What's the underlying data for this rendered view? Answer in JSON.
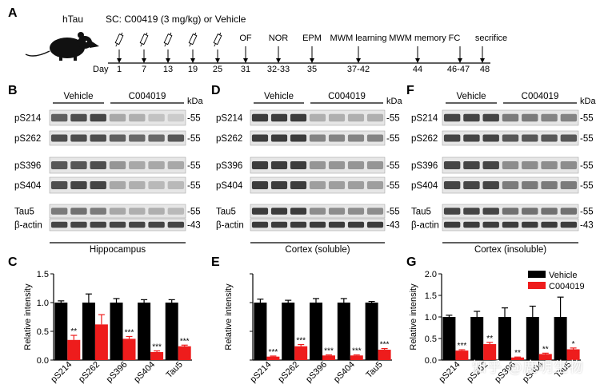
{
  "colors": {
    "vehicle": "#000000",
    "compound": "#ee1c1c",
    "blot_bg": "#e6e6e6",
    "band": "#333333"
  },
  "panel_a": {
    "letter": "A",
    "model": "hTau",
    "treatment": "SC: C00419 (3 mg/kg) or Vehicle",
    "day_label": "Day",
    "injection_days": [
      "1",
      "7",
      "13",
      "19",
      "25"
    ],
    "tests": [
      {
        "name": "OF",
        "day": "31"
      },
      {
        "name": "NOR",
        "day": "32-33"
      },
      {
        "name": "EPM",
        "day": "35"
      },
      {
        "name": "MWM learning",
        "day": "37-42"
      },
      {
        "name": "MWM memory",
        "day": "44"
      },
      {
        "name": "FC",
        "day": "46-47"
      },
      {
        "name": "secrifice",
        "day": "48"
      }
    ]
  },
  "blots": [
    {
      "letter": "B",
      "group1": "Vehicle",
      "group2": "C004019",
      "kda": "kDa",
      "rows": [
        {
          "label": "pS214",
          "mw": "-55",
          "veh": [
            0.75,
            0.85,
            0.9
          ],
          "drug": [
            0.35,
            0.3,
            0.2,
            0.15
          ]
        },
        {
          "label": "pS262",
          "mw": "-55",
          "veh": [
            0.85,
            0.85,
            0.85
          ],
          "drug": [
            0.75,
            0.7,
            0.7,
            0.8
          ]
        },
        {
          "label": "pS396",
          "mw": "-55",
          "veh": [
            0.8,
            0.8,
            0.85
          ],
          "drug": [
            0.45,
            0.35,
            0.35,
            0.35
          ]
        },
        {
          "label": "pS404",
          "mw": "-55",
          "veh": [
            0.85,
            0.9,
            0.9
          ],
          "drug": [
            0.35,
            0.3,
            0.25,
            0.25
          ]
        },
        {
          "label": "Tau5",
          "mw": "-55",
          "veh": [
            0.6,
            0.65,
            0.6
          ],
          "drug": [
            0.35,
            0.3,
            0.3,
            0.25
          ]
        },
        {
          "label": "β-actin",
          "mw": "-43",
          "veh": [
            0.9,
            0.9,
            0.9
          ],
          "drug": [
            0.9,
            0.9,
            0.9,
            0.9
          ]
        }
      ],
      "caption": "Hippocampus"
    },
    {
      "letter": "D",
      "group1": "Vehicle",
      "group2": "C004019",
      "kda": "kDa",
      "rows": [
        {
          "label": "pS214",
          "mw": "-55",
          "veh": [
            0.95,
            0.95,
            0.95
          ],
          "drug": [
            0.3,
            0.3,
            0.3,
            0.3
          ]
        },
        {
          "label": "pS262",
          "mw": "-55",
          "veh": [
            0.95,
            0.95,
            0.95
          ],
          "drug": [
            0.55,
            0.55,
            0.55,
            0.55
          ]
        },
        {
          "label": "pS396",
          "mw": "-55",
          "veh": [
            0.95,
            0.95,
            0.95
          ],
          "drug": [
            0.45,
            0.45,
            0.45,
            0.45
          ]
        },
        {
          "label": "pS404",
          "mw": "-55",
          "veh": [
            0.95,
            0.95,
            0.95
          ],
          "drug": [
            0.4,
            0.4,
            0.4,
            0.4
          ]
        },
        {
          "label": "Tau5",
          "mw": "-55",
          "veh": [
            0.95,
            0.95,
            0.95
          ],
          "drug": [
            0.5,
            0.5,
            0.5,
            0.5
          ]
        },
        {
          "label": "β-actin",
          "mw": "-43",
          "veh": [
            0.95,
            0.95,
            0.95
          ],
          "drug": [
            0.95,
            0.95,
            0.95,
            0.95
          ]
        }
      ],
      "caption": "Cortex (soluble)"
    },
    {
      "letter": "F",
      "group1": "Vehicle",
      "group2": "C004019",
      "kda": "kDa",
      "rows": [
        {
          "label": "pS214",
          "mw": "-55",
          "veh": [
            0.9,
            0.9,
            0.9
          ],
          "drug": [
            0.6,
            0.6,
            0.55,
            0.55
          ]
        },
        {
          "label": "pS262",
          "mw": "-55",
          "veh": [
            0.9,
            0.9,
            0.9
          ],
          "drug": [
            0.8,
            0.8,
            0.8,
            0.8
          ]
        },
        {
          "label": "pS396",
          "mw": "-55",
          "veh": [
            0.9,
            0.9,
            0.9
          ],
          "drug": [
            0.5,
            0.5,
            0.5,
            0.5
          ]
        },
        {
          "label": "pS404",
          "mw": "-55",
          "veh": [
            0.9,
            0.9,
            0.9
          ],
          "drug": [
            0.6,
            0.6,
            0.6,
            0.6
          ]
        },
        {
          "label": "Tau5",
          "mw": "-55",
          "veh": [
            0.9,
            0.9,
            0.9
          ],
          "drug": [
            0.65,
            0.65,
            0.65,
            0.65
          ]
        },
        {
          "label": "β-actin",
          "mw": "-43",
          "veh": [
            0.95,
            0.95,
            0.95
          ],
          "drug": [
            0.95,
            0.95,
            0.95,
            0.95
          ]
        }
      ],
      "caption": "Cortex (insoluble)"
    }
  ],
  "chart_data": [
    {
      "letter": "C",
      "type": "bar",
      "ylabel": "Relative intensity",
      "ylim": [
        0,
        1.5
      ],
      "yticks": [
        "0.0",
        "0.5",
        "1.0",
        "1.5"
      ],
      "show_ytick_labels": true,
      "categories": [
        "pS214",
        "pS262",
        "pS396",
        "pS404",
        "Tau5"
      ],
      "series": [
        {
          "name": "Vehicle",
          "values": [
            1.0,
            1.0,
            1.0,
            1.0,
            1.0
          ],
          "errors": [
            0.03,
            0.15,
            0.07,
            0.05,
            0.05
          ]
        },
        {
          "name": "C004019",
          "values": [
            0.35,
            0.62,
            0.37,
            0.14,
            0.24
          ],
          "errors": [
            0.08,
            0.17,
            0.04,
            0.02,
            0.02
          ]
        }
      ],
      "significance": [
        "**",
        "",
        "***",
        "***",
        "***"
      ]
    },
    {
      "letter": "E",
      "type": "bar",
      "ylabel": "Relative intensity",
      "ylim": [
        0,
        1.5
      ],
      "yticks": [
        "0.0",
        "0.5",
        "1.0",
        "1.5"
      ],
      "show_ytick_labels": false,
      "categories": [
        "pS214",
        "pS262",
        "pS396",
        "pS404",
        "Tau5"
      ],
      "series": [
        {
          "name": "Vehicle",
          "values": [
            1.0,
            1.0,
            1.0,
            1.0,
            1.0
          ],
          "errors": [
            0.06,
            0.04,
            0.07,
            0.07,
            0.02
          ]
        },
        {
          "name": "C004019",
          "values": [
            0.06,
            0.24,
            0.08,
            0.08,
            0.18
          ],
          "errors": [
            0.01,
            0.03,
            0.01,
            0.01,
            0.02
          ]
        }
      ],
      "significance": [
        "***",
        "***",
        "***",
        "***",
        "***"
      ]
    },
    {
      "letter": "G",
      "type": "bar",
      "ylabel": "Relative intensity",
      "ylim": [
        0,
        2.0
      ],
      "yticks": [
        "0.0",
        "0.5",
        "1.0",
        "1.5",
        "2.0"
      ],
      "show_ytick_labels": true,
      "categories": [
        "pS214",
        "pS262",
        "pS396",
        "pS404",
        "Tau5"
      ],
      "series": [
        {
          "name": "Vehicle",
          "values": [
            1.0,
            1.0,
            1.0,
            1.0,
            1.0
          ],
          "errors": [
            0.04,
            0.13,
            0.21,
            0.25,
            0.46
          ]
        },
        {
          "name": "C004019",
          "values": [
            0.22,
            0.37,
            0.06,
            0.14,
            0.25
          ],
          "errors": [
            0.02,
            0.04,
            0.01,
            0.02,
            0.03
          ]
        }
      ],
      "significance": [
        "***",
        "**",
        "**",
        "**",
        "*"
      ],
      "legend": [
        "Vehicle",
        "C004019"
      ]
    }
  ],
  "watermark": "知乎 @鹿明生物"
}
